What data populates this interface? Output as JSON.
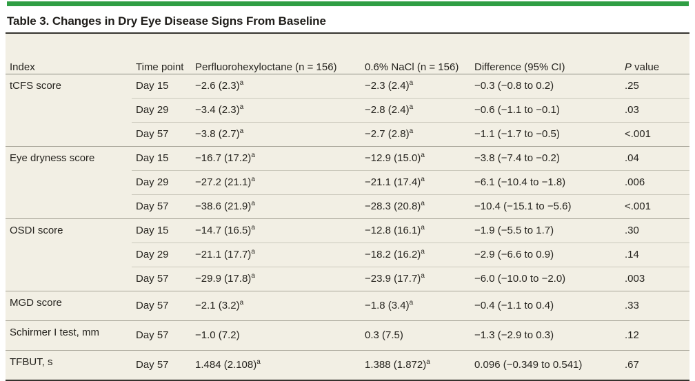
{
  "title": "Table 3. Changes in Dry Eye Disease Signs From Baseline",
  "colors": {
    "accent_green": "#2f9e44",
    "table_background_cream": "#f2efe4",
    "heavy_rule": "#35332e",
    "group_rule": "#a7a497",
    "sub_rule": "#cbc9bc"
  },
  "header": {
    "index": "Index",
    "time": "Time\npoint",
    "pfho": "Perfluorohexyloctane\n(n = 156)",
    "nacl": "0.6% NaCl\n(n = 156)",
    "diff": "Difference (95% CI)",
    "p_italic": "P",
    "p_rest": " value"
  },
  "groups": [
    {
      "index": "tCFS score",
      "rows": [
        {
          "time": "Day 15",
          "pfho": "−2.6 (2.3)",
          "pfho_sup": "a",
          "nacl": "−2.3 (2.4)",
          "nacl_sup": "a",
          "diff": "−0.3 (−0.8 to 0.2)",
          "p": ".25"
        },
        {
          "time": "Day 29",
          "pfho": "−3.4 (2.3)",
          "pfho_sup": "a",
          "nacl": "−2.8 (2.4)",
          "nacl_sup": "a",
          "diff": "−0.6 (−1.1 to −0.1)",
          "p": ".03"
        },
        {
          "time": "Day 57",
          "pfho": "−3.8 (2.7)",
          "pfho_sup": "a",
          "nacl": "−2.7 (2.8)",
          "nacl_sup": "a",
          "diff": "−1.1 (−1.7 to −0.5)",
          "p": "<.001"
        }
      ]
    },
    {
      "index": "Eye dryness score",
      "rows": [
        {
          "time": "Day 15",
          "pfho": "−16.7 (17.2)",
          "pfho_sup": "a",
          "nacl": "−12.9 (15.0)",
          "nacl_sup": "a",
          "diff": "−3.8 (−7.4 to −0.2)",
          "p": ".04"
        },
        {
          "time": "Day 29",
          "pfho": "−27.2 (21.1)",
          "pfho_sup": "a",
          "nacl": "−21.1 (17.4)",
          "nacl_sup": "a",
          "diff": "−6.1 (−10.4 to −1.8)",
          "p": ".006"
        },
        {
          "time": "Day 57",
          "pfho": "−38.6 (21.9)",
          "pfho_sup": "a",
          "nacl": "−28.3 (20.8)",
          "nacl_sup": "a",
          "diff": "−10.4 (−15.1 to −5.6)",
          "p": "<.001"
        }
      ]
    },
    {
      "index": "OSDI score",
      "rows": [
        {
          "time": "Day 15",
          "pfho": "−14.7 (16.5)",
          "pfho_sup": "a",
          "nacl": "−12.8 (16.1)",
          "nacl_sup": "a",
          "diff": "−1.9 (−5.5 to 1.7)",
          "p": ".30"
        },
        {
          "time": "Day 29",
          "pfho": "−21.1 (17.7)",
          "pfho_sup": "a",
          "nacl": "−18.2 (16.2)",
          "nacl_sup": "a",
          "diff": "−2.9 (−6.6 to 0.9)",
          "p": ".14"
        },
        {
          "time": "Day 57",
          "pfho": "−29.9 (17.8)",
          "pfho_sup": "a",
          "nacl": "−23.9 (17.7)",
          "nacl_sup": "a",
          "diff": "−6.0 (−10.0 to −2.0)",
          "p": ".003"
        }
      ]
    },
    {
      "index": "MGD score",
      "rows": [
        {
          "time": "Day 57",
          "pfho": "−2.1 (3.2)",
          "pfho_sup": "a",
          "nacl": "−1.8 (3.4)",
          "nacl_sup": "a",
          "diff": "−0.4 (−1.1 to 0.4)",
          "p": ".33"
        }
      ]
    },
    {
      "index": "Schirmer I test, mm",
      "rows": [
        {
          "time": "Day 57",
          "pfho": "−1.0 (7.2)",
          "pfho_sup": "",
          "nacl": "0.3 (7.5)",
          "nacl_sup": "",
          "diff": "−1.3 (−2.9 to 0.3)",
          "p": ".12"
        }
      ]
    },
    {
      "index": "TFBUT, s",
      "rows": [
        {
          "time": "Day 57",
          "pfho": "1.484 (2.108)",
          "pfho_sup": "a",
          "nacl": "1.388 (1.872)",
          "nacl_sup": "a",
          "diff": "0.096 (−0.349 to 0.541)",
          "p": ".67"
        }
      ]
    }
  ]
}
